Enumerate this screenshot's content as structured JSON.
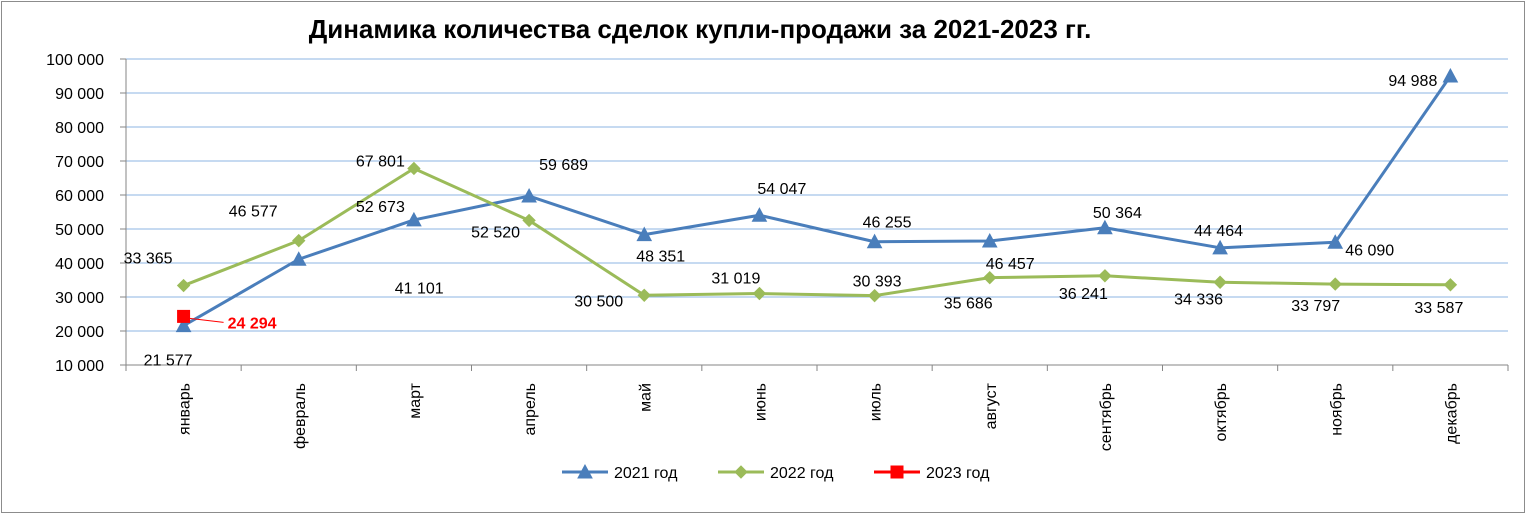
{
  "chart_data": {
    "type": "line",
    "title": "Динамика количества сделок купли-продажи за 2021-2023 гг.",
    "categories": [
      "январь",
      "февраль",
      "март",
      "апрель",
      "май",
      "июнь",
      "июль",
      "август",
      "сентябрь",
      "октябрь",
      "ноябрь",
      "декабрь"
    ],
    "ylim": [
      10000,
      100000
    ],
    "y_ticks": [
      "10 000",
      "20 000",
      "30 000",
      "40 000",
      "50 000",
      "60 000",
      "70 000",
      "80 000",
      "90 000",
      "100 000"
    ],
    "grid": true,
    "legend_position": "bottom",
    "series": [
      {
        "name": "2021 год",
        "color": "#4a7ebb",
        "marker": "triangle",
        "values": [
          21577,
          41101,
          52673,
          59689,
          48351,
          54047,
          46255,
          46457,
          50364,
          44464,
          46090,
          94988
        ],
        "labels": [
          "21 577",
          "41 101",
          "52 673",
          "59 689",
          "48 351",
          "54 047",
          "46 255",
          "46 457",
          "50 364",
          "44 464",
          "46 090",
          "94 988"
        ]
      },
      {
        "name": "2022 год",
        "color": "#9bbb59",
        "marker": "diamond",
        "values": [
          33365,
          46577,
          67801,
          52520,
          30500,
          31019,
          30393,
          35686,
          36241,
          34336,
          33797,
          33587
        ],
        "labels": [
          "33 365",
          "46 577",
          "67 801",
          "52 520",
          "30 500",
          "31 019",
          "30 393",
          "35 686",
          "36 241",
          "34 336",
          "33 797",
          "33 587"
        ]
      },
      {
        "name": "2023 год",
        "color": "#ff0000",
        "marker": "square",
        "values": [
          24294,
          null,
          null,
          null,
          null,
          null,
          null,
          null,
          null,
          null,
          null,
          null
        ],
        "labels": [
          "24 294",
          "",
          "",
          "",
          "",
          "",
          "",
          "",
          "",
          "",
          "",
          ""
        ]
      }
    ]
  }
}
